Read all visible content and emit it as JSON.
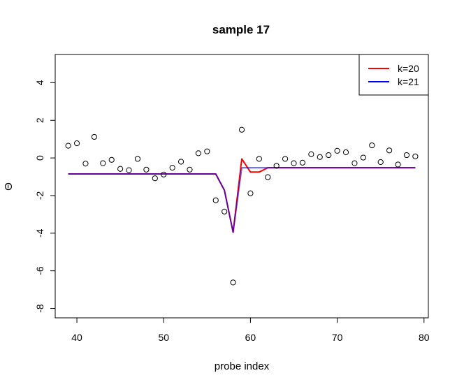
{
  "chart_data": {
    "type": "scatter",
    "title": "sample 17",
    "xlabel": "probe index",
    "ylabel": "Θ",
    "xlim": [
      37.5,
      80.5
    ],
    "ylim": [
      -8.5,
      5.5
    ],
    "xticks": [
      40,
      50,
      60,
      70,
      80
    ],
    "yticks": [
      -8,
      -6,
      -4,
      -2,
      0,
      2,
      4
    ],
    "grid": false,
    "legend_position": "top-right",
    "points": {
      "x": [
        39,
        40,
        41,
        42,
        43,
        44,
        45,
        46,
        47,
        48,
        49,
        50,
        51,
        52,
        53,
        54,
        55,
        56,
        57,
        58,
        59,
        60,
        61,
        62,
        63,
        64,
        65,
        66,
        67,
        68,
        69,
        70,
        71,
        72,
        73,
        74,
        75,
        76,
        77,
        78,
        79
      ],
      "y": [
        0.65,
        0.78,
        -0.3,
        1.12,
        -0.28,
        -0.1,
        -0.58,
        -0.65,
        -0.05,
        -0.62,
        -1.08,
        -0.88,
        -0.52,
        -0.2,
        -0.62,
        0.25,
        0.35,
        -2.25,
        -2.85,
        -6.62,
        1.5,
        -1.88,
        -0.05,
        -1.02,
        -0.42,
        -0.05,
        -0.28,
        -0.25,
        0.2,
        0.05,
        0.15,
        0.38,
        0.3,
        -0.28,
        0.02,
        0.67,
        -0.22,
        0.4,
        -0.35,
        0.15,
        0.08
      ]
    },
    "series": [
      {
        "name": "k=20",
        "color": "#ff0000",
        "x": [
          39,
          40,
          41,
          42,
          43,
          44,
          45,
          46,
          47,
          48,
          49,
          50,
          51,
          52,
          53,
          54,
          55,
          56,
          57,
          58,
          59,
          60,
          61,
          62,
          63,
          64,
          65,
          66,
          67,
          68,
          69,
          70,
          71,
          72,
          73,
          74,
          75,
          76,
          77,
          78,
          79
        ],
        "y": [
          -0.85,
          -0.85,
          -0.85,
          -0.85,
          -0.85,
          -0.85,
          -0.85,
          -0.85,
          -0.85,
          -0.85,
          -0.85,
          -0.85,
          -0.85,
          -0.85,
          -0.85,
          -0.85,
          -0.85,
          -0.85,
          -1.72,
          -3.95,
          -0.05,
          -0.75,
          -0.75,
          -0.52,
          -0.52,
          -0.52,
          -0.52,
          -0.52,
          -0.52,
          -0.52,
          -0.52,
          -0.52,
          -0.52,
          -0.52,
          -0.52,
          -0.52,
          -0.52,
          -0.52,
          -0.52,
          -0.52,
          -0.52
        ]
      },
      {
        "name": "k=21",
        "color": "#0000ff",
        "x": [
          39,
          40,
          41,
          42,
          43,
          44,
          45,
          46,
          47,
          48,
          49,
          50,
          51,
          52,
          53,
          54,
          55,
          56,
          57,
          58,
          59,
          60,
          61,
          62,
          63,
          64,
          65,
          66,
          67,
          68,
          69,
          70,
          71,
          72,
          73,
          74,
          75,
          76,
          77,
          78,
          79
        ],
        "y": [
          -0.85,
          -0.85,
          -0.85,
          -0.85,
          -0.85,
          -0.85,
          -0.85,
          -0.85,
          -0.85,
          -0.85,
          -0.85,
          -0.85,
          -0.85,
          -0.85,
          -0.85,
          -0.85,
          -0.85,
          -0.85,
          -1.72,
          -3.95,
          -0.52,
          -0.52,
          -0.52,
          -0.52,
          -0.52,
          -0.52,
          -0.52,
          -0.52,
          -0.52,
          -0.52,
          -0.52,
          -0.52,
          -0.52,
          -0.52,
          -0.52,
          -0.52,
          -0.52,
          -0.52,
          -0.52,
          -0.52,
          -0.52
        ]
      }
    ]
  }
}
